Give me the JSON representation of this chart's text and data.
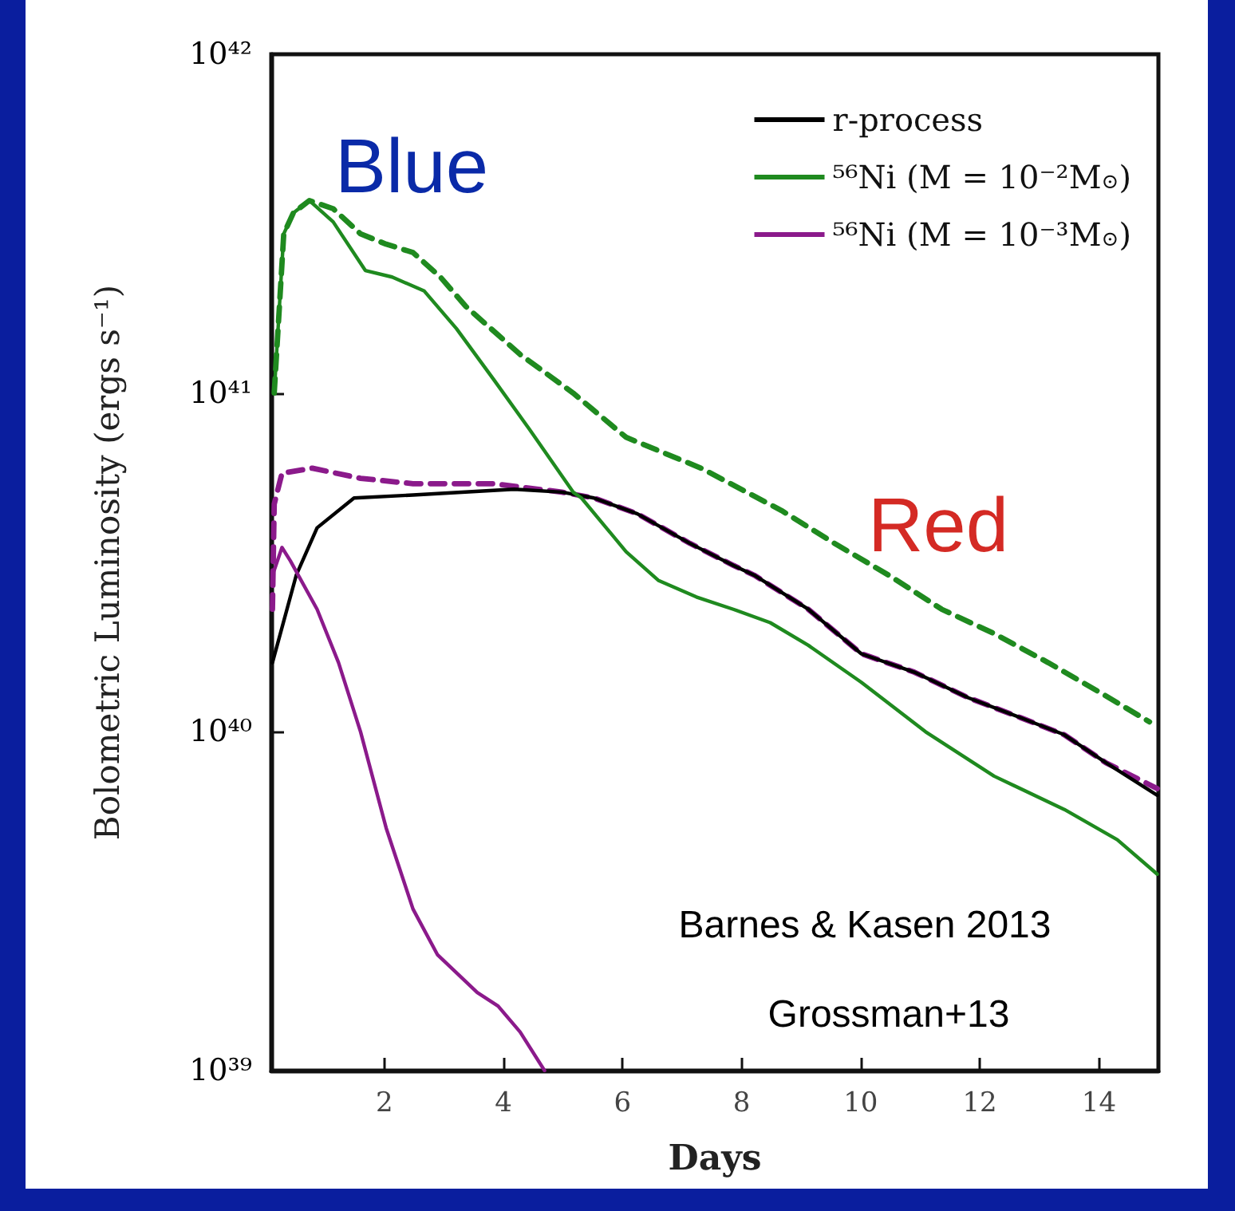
{
  "chart_data": {
    "type": "line",
    "xlabel": "Days",
    "ylabel": "Bolometric Luminosity (ergs s⁻¹)",
    "xlim": [
      0.1,
      15
    ],
    "xticks": [
      2,
      4,
      6,
      8,
      10,
      12,
      14
    ],
    "log": "y",
    "ylim": [
      1e+39,
      1e+42
    ],
    "yticks": [
      {
        "value": 1e+39,
        "label": "10³⁹"
      },
      {
        "value": 1e+40,
        "label": "10⁴⁰"
      },
      {
        "value": 1e+41,
        "label": "10⁴¹"
      },
      {
        "value": 1e+42,
        "label": "10⁴²"
      }
    ],
    "legend": "top right",
    "marker": "none",
    "series": [
      {
        "name": "r-process",
        "color": "#000000",
        "line_style": "solid",
        "x": [
          0.12,
          0.52,
          0.87,
          1.49,
          2.48,
          4.18,
          4.98,
          5.52,
          6.25,
          7.13,
          7.86,
          8.21,
          9.12,
          10.01,
          10.9,
          11.81,
          12.69,
          13.42,
          14.12,
          14.98
        ],
        "values": [
          1.6e+40,
          2.9e+40,
          4e+40,
          4.9e+40,
          5e+40,
          5.2e+40,
          5.1e+40,
          4.9e+40,
          4.4e+40,
          3.6e+40,
          3.1e+40,
          2.9e+40,
          2.3e+40,
          1.7e+40,
          1.5e+40,
          1.26e+40,
          1.1e+40,
          9.8e+39,
          8.1e+39,
          6.5e+39
        ]
      },
      {
        "name": "⁵⁶Ni (M = 10⁻²M$_{⊙}$)",
        "color": "#1f8a1f",
        "line_style": "solid",
        "x": [
          0.15,
          0.31,
          0.47,
          0.74,
          1.14,
          1.68,
          2.13,
          2.67,
          3.21,
          3.83,
          4.44,
          5.17,
          5.31,
          6.06,
          6.6,
          7.24,
          7.86,
          8.48,
          9.12,
          10.01,
          11.09,
          12.24,
          13.42,
          14.31,
          14.98
        ],
        "values": [
          1e+41,
          2.95e+41,
          3.4e+41,
          3.7e+41,
          3.2e+41,
          2.3e+41,
          2.2e+41,
          2e+41,
          1.55e+41,
          1.1e+41,
          7.8e+40,
          5.1e+40,
          4.9e+40,
          3.4e+40,
          2.8e+40,
          2.5e+40,
          2.3e+40,
          2.1e+40,
          1.8e+40,
          1.4e+40,
          1e+40,
          7.4e+39,
          5.9e+39,
          4.8e+39,
          3.8e+39
        ]
      },
      {
        "name": "⁵⁶Ni (M = 10⁻³M$_{⊙}$)",
        "color": "#8b1a8b",
        "line_style": "solid",
        "x": [
          0.15,
          0.28,
          0.42,
          0.87,
          1.23,
          1.6,
          2.03,
          2.48,
          2.89,
          3.56,
          3.91,
          4.28,
          4.69
        ],
        "values": [
          3e+40,
          3.5e+40,
          3.2e+40,
          2.3e+40,
          1.6e+40,
          1e+40,
          5.2e+39,
          3e+39,
          2.2e+39,
          1.7e+39,
          1.55e+39,
          1.3e+39,
          1e+39
        ]
      },
      {
        "color": "#1f8a1f",
        "line_style": "dashed",
        "x": [
          0.15,
          0.31,
          0.47,
          0.74,
          1.14,
          1.6,
          2.03,
          2.48,
          2.94,
          3.37,
          4.28,
          5.17,
          6.06,
          7.32,
          8.67,
          9.56,
          10.47,
          11.36,
          12.24,
          13.15,
          14.04,
          14.85
        ],
        "values": [
          1e+41,
          2.95e+41,
          3.4e+41,
          3.7e+41,
          3.5e+41,
          2.95e+41,
          2.75e+41,
          2.6e+41,
          2.2e+41,
          1.8e+41,
          1.3e+41,
          1e+41,
          7.4e+40,
          6e+40,
          4.5e+40,
          3.6e+40,
          2.9e+40,
          2.3e+40,
          1.95e+40,
          1.6e+40,
          1.3e+40,
          1.07e+40
        ]
      },
      {
        "color": "#8b1a8b",
        "line_style": "dashed",
        "x": [
          0.12,
          0.15,
          0.28,
          0.79,
          1.6,
          2.48,
          3.83,
          4.98,
          5.52,
          6.25,
          7.13,
          7.86,
          8.21,
          9.12,
          10.01,
          10.9,
          11.81,
          12.69,
          13.42,
          14.12,
          14.98
        ],
        "values": [
          2.3e+40,
          4.7e+40,
          5.8e+40,
          6e+40,
          5.6e+40,
          5.4e+40,
          5.4e+40,
          5.1e+40,
          4.9e+40,
          4.4e+40,
          3.6e+40,
          3.1e+40,
          2.9e+40,
          2.3e+40,
          1.7e+40,
          1.5e+40,
          1.26e+40,
          1.1e+40,
          9.8e+39,
          8.1e+39,
          6.8e+39
        ]
      }
    ],
    "annotations": [
      "Blue",
      "Red",
      "Barnes & Kasen 2013",
      "Grossman+13"
    ]
  }
}
